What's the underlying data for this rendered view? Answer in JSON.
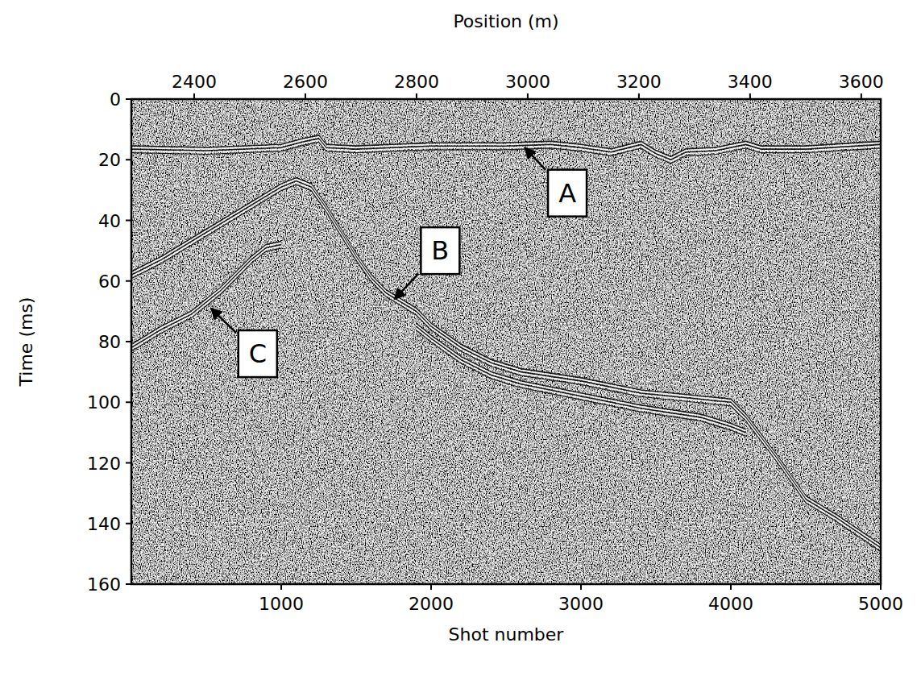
{
  "chart_data": {
    "type": "seismic_section",
    "x_label": "Shot number",
    "x2_label": "Position (m)",
    "y_label": "Time (ms)",
    "xlim": [
      0,
      5000
    ],
    "xticks": [
      1000,
      2000,
      3000,
      4000,
      5000
    ],
    "x2lim": [
      2287,
      3635
    ],
    "x2ticks": [
      2400,
      2600,
      2800,
      3000,
      3200,
      3400,
      3600
    ],
    "ylim": [
      160,
      0
    ],
    "yticks": [
      0,
      20,
      40,
      60,
      80,
      100,
      120,
      140,
      160
    ],
    "grid": false,
    "series": [
      {
        "color": "#ffffff",
        "x": [
          0,
          500,
          1000,
          1150,
          1250,
          1300,
          1500,
          2000,
          2500,
          2800,
          3000,
          3200,
          3400,
          3500,
          3600,
          3700,
          3900,
          4100,
          4200,
          4500,
          5000
        ],
        "values": [
          16.5,
          17,
          16,
          14,
          13,
          16,
          16.5,
          15.5,
          15.5,
          15,
          16,
          17.5,
          15,
          18,
          20,
          17.5,
          17,
          15,
          16.5,
          16.5,
          15
        ]
      },
      {
        "color": "#ffffff",
        "x": [
          0,
          200,
          400,
          600,
          800,
          1000,
          1100,
          1200,
          1300,
          1400,
          1500,
          1600,
          1700,
          1800,
          1900,
          2000,
          2200,
          2400,
          2600,
          3000,
          3400,
          3800,
          4000,
          4100,
          4300,
          4500,
          4700,
          5000
        ],
        "values": [
          58,
          53,
          47,
          41,
          35,
          29,
          27,
          29,
          36,
          44,
          52,
          59,
          64,
          67,
          70,
          75,
          82,
          87,
          90,
          93,
          97,
          99,
          100,
          105,
          118,
          132,
          138,
          148
        ]
      },
      {
        "color": "#ffffff",
        "x": [
          1900,
          2000,
          2200,
          2400,
          2600,
          3000,
          3400,
          3800,
          4000,
          4100
        ],
        "values": [
          75,
          79,
          86,
          91,
          94,
          98,
          102,
          105,
          108,
          110
        ]
      },
      {
        "color": "#ffffff",
        "x": [
          0,
          200,
          400,
          600,
          800,
          900,
          1000
        ],
        "values": [
          82,
          76,
          71,
          63,
          53,
          49,
          48
        ]
      }
    ],
    "annotations": [
      {
        "text": "A",
        "x": 2625,
        "y": 16,
        "text_x": 2909,
        "text_y": 31
      },
      {
        "text": "B",
        "x": 1755,
        "y": 66,
        "text_x": 2061,
        "text_y": 50
      },
      {
        "text": "C",
        "x": 531,
        "y": 69,
        "text_x": 843,
        "text_y": 84
      }
    ]
  }
}
